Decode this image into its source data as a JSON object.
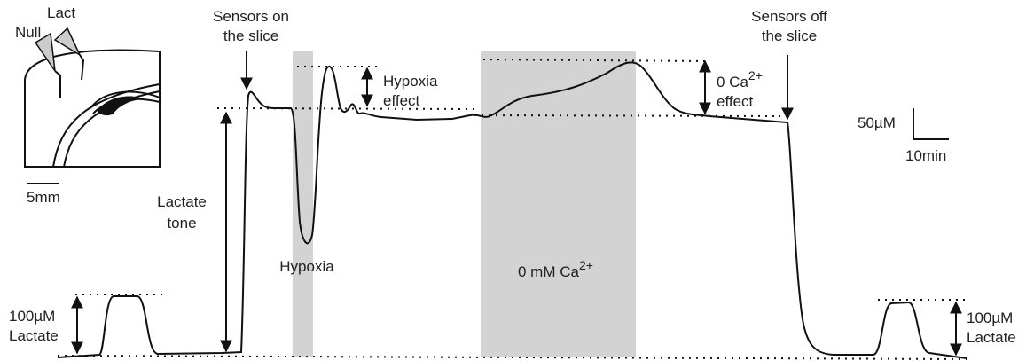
{
  "inset": {
    "labels": [
      "Null",
      "Lact"
    ],
    "scale_bar": "5mm"
  },
  "annotations": {
    "sensors_on": [
      "Sensors on",
      "the slice"
    ],
    "lactate_tone": [
      "Lactate",
      "tone"
    ],
    "hypoxia": "Hypoxia",
    "hypoxia_effect": [
      "Hypoxia",
      "effect"
    ],
    "calcium_free": {
      "text": "0 mM Ca",
      "superscript": "2+"
    },
    "calcium_effect": {
      "text": "0 Ca",
      "superscript": "2+",
      "line2": "effect"
    },
    "sensors_off": [
      "Sensors off",
      "the slice"
    ],
    "calibration_left": [
      "100µM",
      "Lactate"
    ],
    "calibration_right": [
      "100µM",
      "Lactate"
    ]
  },
  "scale_bar": {
    "y": "50µM",
    "x": "10min"
  }
}
